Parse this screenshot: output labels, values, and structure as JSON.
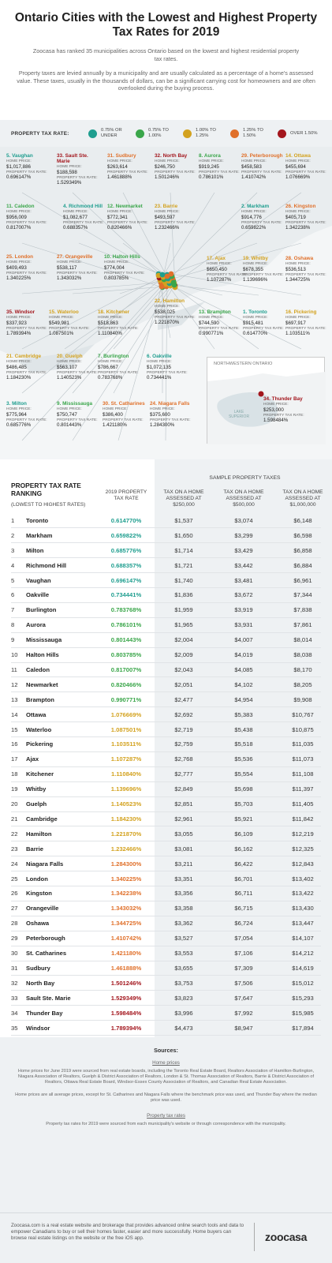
{
  "header": {
    "title": "Ontario Cities with the Lowest and Highest Property Tax Rates for 2019",
    "intro": "Zoocasa has ranked 35 municipalities across Ontario based on the lowest and highest residential property tax rates.",
    "intro2": "Property taxes are levied annually by a municipality and are usually calculated as a percentage of a home's assessed value. These taxes, usually in the thousands of dollars, can be a significant carrying cost for homeowners and are often overlooked during the buying process."
  },
  "legend": {
    "title": "PROPERTY TAX RATE:",
    "items": [
      {
        "label": "0.75% OR UNDER",
        "color": "#1f9e8f"
      },
      {
        "label": "0.75% TO 1.00%",
        "color": "#3aa64a"
      },
      {
        "label": "1.00% TO 1.25%",
        "color": "#d3a21f"
      },
      {
        "label": "1.25% TO 1.50%",
        "color": "#e0702a"
      },
      {
        "label": "OVER 1.50%",
        "color": "#a3161d"
      }
    ]
  },
  "map": {
    "home_price_label": "HOME PRICE:",
    "tax_rate_label": "PROPERTY TAX RATE:",
    "inset_title": "NORTHWESTERN ONTARIO",
    "lake_label": "LAKE SUPERIOR",
    "cities": [
      {
        "name": "5. Vaughan",
        "price": "$1,017,886",
        "rate": "0.696147%",
        "tier": 0
      },
      {
        "name": "33. Sault Ste. Marie",
        "price": "$188,598",
        "rate": "1.529349%",
        "tier": 4
      },
      {
        "name": "31. Sudbury",
        "price": "$263,614",
        "rate": "1.461888%",
        "tier": 3
      },
      {
        "name": "32. North Bay",
        "price": "$246,750",
        "rate": "1.501246%",
        "tier": 4
      },
      {
        "name": "8. Aurora",
        "price": "$919,245",
        "rate": "0.786101%",
        "tier": 1
      },
      {
        "name": "29. Peterborough",
        "price": "$458,583",
        "rate": "1.410742%",
        "tier": 3
      },
      {
        "name": "14. Ottawa",
        "price": "$455,694",
        "rate": "1.076669%",
        "tier": 2
      },
      {
        "name": "11. Caledon",
        "price": "$956,009",
        "rate": "0.817007%",
        "tier": 1
      },
      {
        "name": "4. Richmond Hill",
        "price": "$1,082,677",
        "rate": "0.688357%",
        "tier": 0
      },
      {
        "name": "12. Newmarket",
        "price": "$772,341",
        "rate": "0.820466%",
        "tier": 1
      },
      {
        "name": "23. Barrie",
        "price": "$493,597",
        "rate": "1.232466%",
        "tier": 2
      },
      {
        "name": "2. Markham",
        "price": "$914,776",
        "rate": "0.659822%",
        "tier": 0
      },
      {
        "name": "26. Kingston",
        "price": "$405,719",
        "rate": "1.342238%",
        "tier": 3
      },
      {
        "name": "25. London",
        "price": "$409,493",
        "rate": "1.340225%",
        "tier": 3
      },
      {
        "name": "27. Orangeville",
        "price": "$538,117",
        "rate": "1.343032%",
        "tier": 3
      },
      {
        "name": "10. Halton Hills",
        "price": "$774,004",
        "rate": "0.803785%",
        "tier": 1
      },
      {
        "name": "17. Ajax",
        "price": "$650,450",
        "rate": "1.107287%",
        "tier": 2
      },
      {
        "name": "19. Whitby",
        "price": "$678,355",
        "rate": "1.139696%",
        "tier": 2
      },
      {
        "name": "28. Oshawa",
        "price": "$536,513",
        "rate": "1.344725%",
        "tier": 3
      },
      {
        "name": "35. Windsor",
        "price": "$337,923",
        "rate": "1.789394%",
        "tier": 4
      },
      {
        "name": "15. Waterloo",
        "price": "$549,981",
        "rate": "1.087501%",
        "tier": 2
      },
      {
        "name": "18. Kitchener",
        "price": "$518,863",
        "rate": "1.110840%",
        "tier": 2
      },
      {
        "name": "22. Hamilton",
        "price": "$538,025",
        "rate": "1.221870%",
        "tier": 2
      },
      {
        "name": "13. Brampton",
        "price": "$744,590",
        "rate": "0.990771%",
        "tier": 1
      },
      {
        "name": "1. Toronto",
        "price": "$915,481",
        "rate": "0.614770%",
        "tier": 0
      },
      {
        "name": "16. Pickering",
        "price": "$697,917",
        "rate": "1.103511%",
        "tier": 2
      },
      {
        "name": "21. Cambridge",
        "price": "$486,485",
        "rate": "1.184230%",
        "tier": 2
      },
      {
        "name": "20. Guelph",
        "price": "$563,107",
        "rate": "1.140523%",
        "tier": 2
      },
      {
        "name": "7. Burlington",
        "price": "$786,667",
        "rate": "0.783768%",
        "tier": 1
      },
      {
        "name": "6. Oakville",
        "price": "$1,072,135",
        "rate": "0.734441%",
        "tier": 0
      },
      {
        "name": "3. Milton",
        "price": "$775,964",
        "rate": "0.685776%",
        "tier": 0
      },
      {
        "name": "9. Mississauga",
        "price": "$750,747",
        "rate": "0.801443%",
        "tier": 1
      },
      {
        "name": "30. St. Catharines",
        "price": "$386,400",
        "rate": "1.421180%",
        "tier": 3
      },
      {
        "name": "24. Niagara Falls",
        "price": "$375,600",
        "rate": "1.284300%",
        "tier": 3
      },
      {
        "name": "34. Thunder Bay",
        "price": "$253,000",
        "rate": "1.598484%",
        "tier": 4
      }
    ]
  },
  "table": {
    "rank_title": "PROPERTY TAX RATE RANKING",
    "rank_sub": "(LOWEST TO HIGHEST RATES)",
    "rate_header": "2019 PROPERTY TAX RATE",
    "group_header": "SAMPLE PROPERTY TAXES",
    "col1_header": "TAX ON A HOME ASSESSED AT $250,000",
    "col2_header": "TAX ON A HOME ASSESSED AT $500,000",
    "col3_header": "TAX ON A HOME ASSESSED AT $1,000,000"
  },
  "chart_data": {
    "type": "table",
    "columns": [
      "Rank",
      "City",
      "2019 Property Tax Rate",
      "Tax on a home assessed at $250,000",
      "Tax on a home assessed at $500,000",
      "Tax on a home assessed at $1,000,000"
    ],
    "rows": [
      {
        "rank": "1",
        "city": "Toronto",
        "rate": "0.614770%",
        "t250": "$1,537",
        "t500": "$3,074",
        "t1m": "$6,148",
        "tier": 0
      },
      {
        "rank": "2",
        "city": "Markham",
        "rate": "0.659822%",
        "t250": "$1,650",
        "t500": "$3,299",
        "t1m": "$6,598",
        "tier": 0
      },
      {
        "rank": "3",
        "city": "Milton",
        "rate": "0.685776%",
        "t250": "$1,714",
        "t500": "$3,429",
        "t1m": "$6,858",
        "tier": 0
      },
      {
        "rank": "4",
        "city": "Richmond Hill",
        "rate": "0.688357%",
        "t250": "$1,721",
        "t500": "$3,442",
        "t1m": "$6,884",
        "tier": 0
      },
      {
        "rank": "5",
        "city": "Vaughan",
        "rate": "0.696147%",
        "t250": "$1,740",
        "t500": "$3,481",
        "t1m": "$6,961",
        "tier": 0
      },
      {
        "rank": "6",
        "city": "Oakville",
        "rate": "0.734441%",
        "t250": "$1,836",
        "t500": "$3,672",
        "t1m": "$7,344",
        "tier": 0
      },
      {
        "rank": "7",
        "city": "Burlington",
        "rate": "0.783768%",
        "t250": "$1,959",
        "t500": "$3,919",
        "t1m": "$7,838",
        "tier": 1
      },
      {
        "rank": "8",
        "city": "Aurora",
        "rate": "0.786101%",
        "t250": "$1,965",
        "t500": "$3,931",
        "t1m": "$7,861",
        "tier": 1
      },
      {
        "rank": "9",
        "city": "Mississauga",
        "rate": "0.801443%",
        "t250": "$2,004",
        "t500": "$4,007",
        "t1m": "$8,014",
        "tier": 1
      },
      {
        "rank": "10",
        "city": "Halton Hills",
        "rate": "0.803785%",
        "t250": "$2,009",
        "t500": "$4,019",
        "t1m": "$8,038",
        "tier": 1
      },
      {
        "rank": "11",
        "city": "Caledon",
        "rate": "0.817007%",
        "t250": "$2,043",
        "t500": "$4,085",
        "t1m": "$8,170",
        "tier": 1
      },
      {
        "rank": "12",
        "city": "Newmarket",
        "rate": "0.820466%",
        "t250": "$2,051",
        "t500": "$4,102",
        "t1m": "$8,205",
        "tier": 1
      },
      {
        "rank": "13",
        "city": "Brampton",
        "rate": "0.990771%",
        "t250": "$2,477",
        "t500": "$4,954",
        "t1m": "$9,908",
        "tier": 1
      },
      {
        "rank": "14",
        "city": "Ottawa",
        "rate": "1.076669%",
        "t250": "$2,692",
        "t500": "$5,383",
        "t1m": "$10,767",
        "tier": 2
      },
      {
        "rank": "15",
        "city": "Waterloo",
        "rate": "1.087501%",
        "t250": "$2,719",
        "t500": "$5,438",
        "t1m": "$10,875",
        "tier": 2
      },
      {
        "rank": "16",
        "city": "Pickering",
        "rate": "1.103511%",
        "t250": "$2,759",
        "t500": "$5,518",
        "t1m": "$11,035",
        "tier": 2
      },
      {
        "rank": "17",
        "city": "Ajax",
        "rate": "1.107287%",
        "t250": "$2,768",
        "t500": "$5,536",
        "t1m": "$11,073",
        "tier": 2
      },
      {
        "rank": "18",
        "city": "Kitchener",
        "rate": "1.110840%",
        "t250": "$2,777",
        "t500": "$5,554",
        "t1m": "$11,108",
        "tier": 2
      },
      {
        "rank": "19",
        "city": "Whitby",
        "rate": "1.139696%",
        "t250": "$2,849",
        "t500": "$5,698",
        "t1m": "$11,397",
        "tier": 2
      },
      {
        "rank": "20",
        "city": "Guelph",
        "rate": "1.140523%",
        "t250": "$2,851",
        "t500": "$5,703",
        "t1m": "$11,405",
        "tier": 2
      },
      {
        "rank": "21",
        "city": "Cambridge",
        "rate": "1.184230%",
        "t250": "$2,961",
        "t500": "$5,921",
        "t1m": "$11,842",
        "tier": 2
      },
      {
        "rank": "22",
        "city": "Hamilton",
        "rate": "1.221870%",
        "t250": "$3,055",
        "t500": "$6,109",
        "t1m": "$12,219",
        "tier": 2
      },
      {
        "rank": "23",
        "city": "Barrie",
        "rate": "1.232466%",
        "t250": "$3,081",
        "t500": "$6,162",
        "t1m": "$12,325",
        "tier": 2
      },
      {
        "rank": "24",
        "city": "Niagara Falls",
        "rate": "1.284300%",
        "t250": "$3,211",
        "t500": "$6,422",
        "t1m": "$12,843",
        "tier": 3
      },
      {
        "rank": "25",
        "city": "London",
        "rate": "1.340225%",
        "t250": "$3,351",
        "t500": "$6,701",
        "t1m": "$13,402",
        "tier": 3
      },
      {
        "rank": "26",
        "city": "Kingston",
        "rate": "1.342238%",
        "t250": "$3,356",
        "t500": "$6,711",
        "t1m": "$13,422",
        "tier": 3
      },
      {
        "rank": "27",
        "city": "Orangeville",
        "rate": "1.343032%",
        "t250": "$3,358",
        "t500": "$6,715",
        "t1m": "$13,430",
        "tier": 3
      },
      {
        "rank": "28",
        "city": "Oshawa",
        "rate": "1.344725%",
        "t250": "$3,362",
        "t500": "$6,724",
        "t1m": "$13,447",
        "tier": 3
      },
      {
        "rank": "29",
        "city": "Peterborough",
        "rate": "1.410742%",
        "t250": "$3,527",
        "t500": "$7,054",
        "t1m": "$14,107",
        "tier": 3
      },
      {
        "rank": "30",
        "city": "St. Catharines",
        "rate": "1.421180%",
        "t250": "$3,553",
        "t500": "$7,106",
        "t1m": "$14,212",
        "tier": 3
      },
      {
        "rank": "31",
        "city": "Sudbury",
        "rate": "1.461888%",
        "t250": "$3,655",
        "t500": "$7,309",
        "t1m": "$14,619",
        "tier": 3
      },
      {
        "rank": "32",
        "city": "North Bay",
        "rate": "1.501246%",
        "t250": "$3,753",
        "t500": "$7,506",
        "t1m": "$15,012",
        "tier": 4
      },
      {
        "rank": "33",
        "city": "Sault Ste. Marie",
        "rate": "1.529349%",
        "t250": "$3,823",
        "t500": "$7,647",
        "t1m": "$15,293",
        "tier": 4
      },
      {
        "rank": "34",
        "city": "Thunder Bay",
        "rate": "1.598484%",
        "t250": "$3,996",
        "t500": "$7,992",
        "t1m": "$15,985",
        "tier": 4
      },
      {
        "rank": "35",
        "city": "Windsor",
        "rate": "1.789394%",
        "t250": "$4,473",
        "t500": "$8,947",
        "t1m": "$17,894",
        "tier": 4
      }
    ]
  },
  "sources": {
    "title": "Sources:",
    "home_prices_title": "Home prices",
    "home_prices_text": "Home prices for June 2019 were sourced from real estate boards, including the Toronto Real Estate Board, Realtors Association of Hamilton-Burlington, Niagara Association of Realtors, Guelph & District Association of Realtors, London & St. Thomas Association of Realtors, Barrie & District Association of Realtors, Ottawa Real Estate Board, Windsor-Essex County Association of Realtors, and Canadian Real Estate Association.",
    "average_note": "Home prices are all average prices, except for St. Catharines and Niagara Falls where the benchmark price was used, and Thunder Bay where the median price was used.",
    "tax_rates_title": "Property tax rates",
    "tax_rates_text": "Property tax rates for 2019 were sourced from each municipality's website or through correspondence with the municipality."
  },
  "footer": {
    "text": "Zoocasa.com is a real estate website and brokerage that provides advanced online search tools and data to empower Canadians to buy or sell their homes faster, easier and more successfully. Home buyers can browse real estate listings on the website or the free iOS app.",
    "logo": "zoocasa"
  }
}
